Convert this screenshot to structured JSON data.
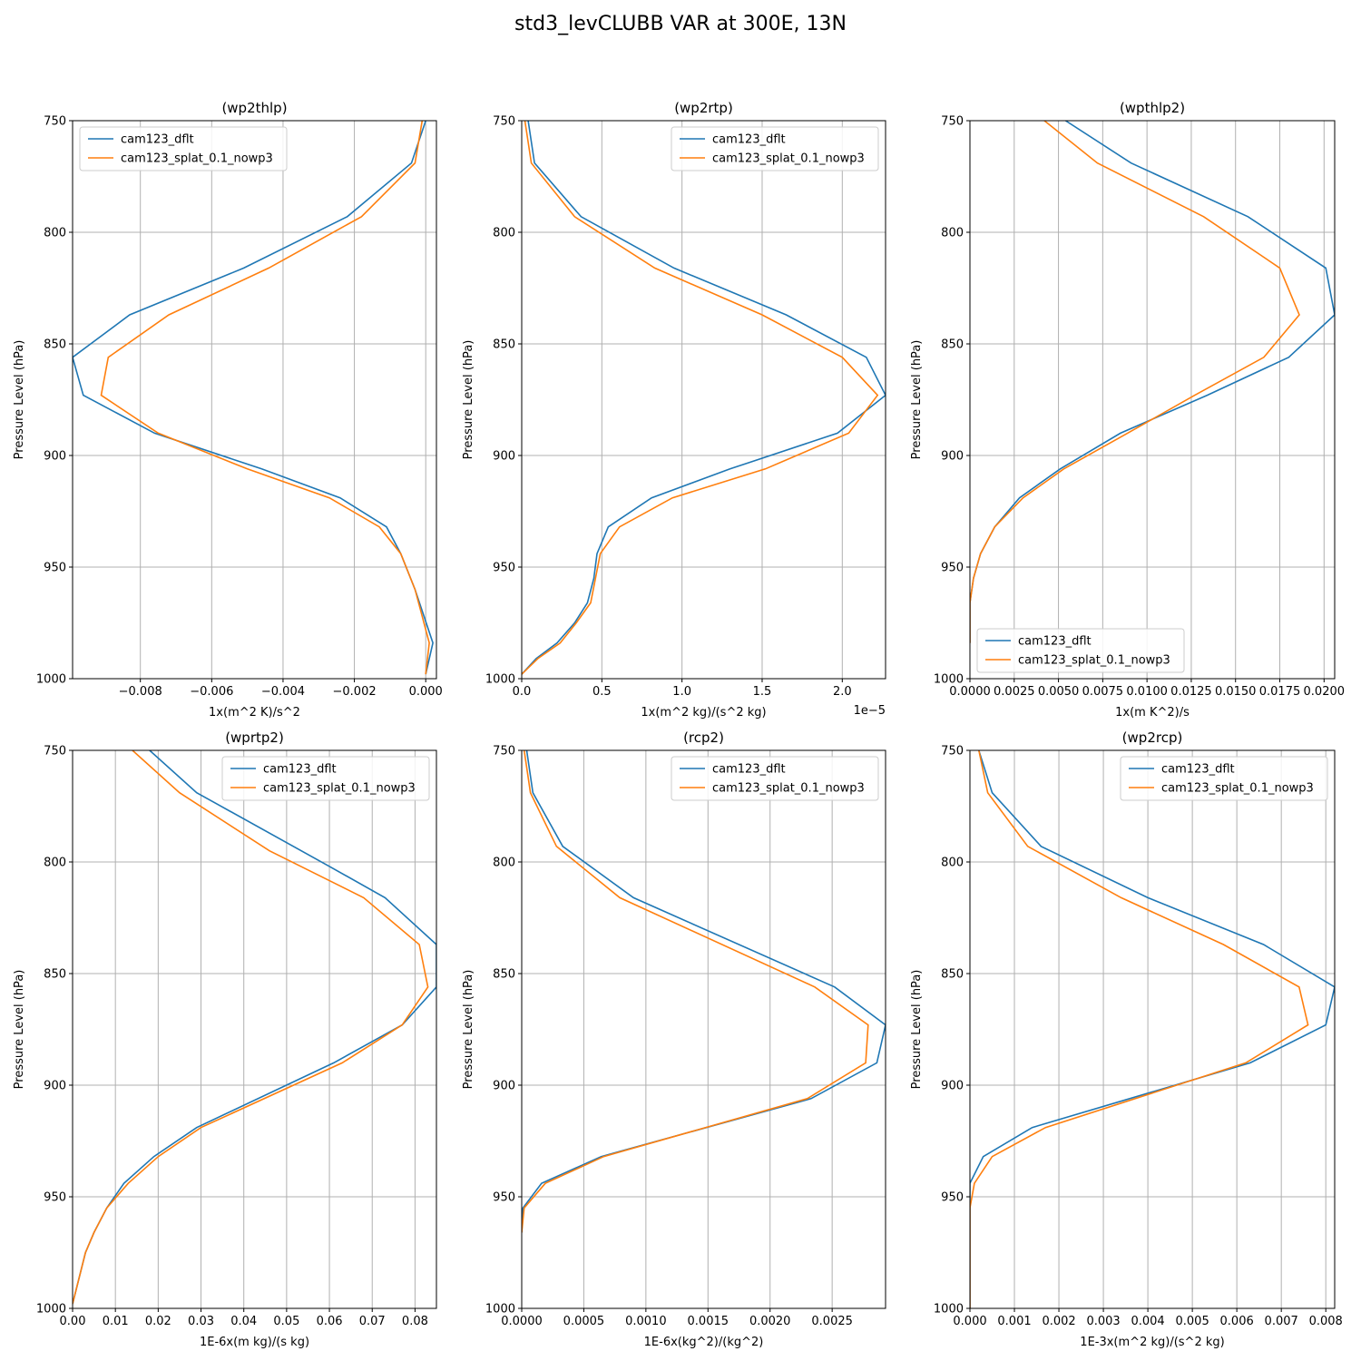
{
  "figure_title": "std3_levCLUBB VAR at 300E, 13N",
  "colors": {
    "dflt": "#1f77b4",
    "splat": "#ff7f0e",
    "grid": "#b0b0b0"
  },
  "chart_data": [
    {
      "type": "line",
      "title": "(wp2thlp)",
      "xlabel": "1x(m^2 K)/s^2",
      "ylabel": "Pressure Level (hPa)",
      "xlim": [
        -0.0099,
        0.0003
      ],
      "ylim": [
        1000,
        750
      ],
      "xticks": [
        -0.008,
        -0.006,
        -0.004,
        -0.002,
        0.0
      ],
      "xtick_labels": [
        "−0.008",
        "−0.006",
        "−0.004",
        "−0.002",
        "0.000"
      ],
      "yticks": [
        750,
        800,
        850,
        900,
        950,
        1000
      ],
      "ytick_labels": [
        "750",
        "800",
        "850",
        "900",
        "950",
        "1000"
      ],
      "offset_label": "",
      "legend": "top-left",
      "grid": true,
      "series": [
        {
          "name": "cam123_dflt",
          "color": "#1f77b4",
          "x": [
            -0.0,
            -0.0004,
            -0.0022,
            -0.0051,
            -0.0083,
            -0.0099,
            -0.0096,
            -0.0076,
            -0.0046,
            -0.0024,
            -0.0011,
            -0.0007,
            -0.0003,
            0.0002,
            0.0
          ],
          "y": [
            750,
            769,
            793,
            816,
            837,
            856,
            873,
            890,
            906,
            919,
            932,
            944,
            960,
            984,
            998
          ]
        },
        {
          "name": "cam123_splat_0.1_nowp3",
          "color": "#ff7f0e",
          "x": [
            -0.0001,
            -0.0003,
            -0.0018,
            -0.0044,
            -0.0072,
            -0.0089,
            -0.0091,
            -0.0075,
            -0.005,
            -0.0027,
            -0.0013,
            -0.0007,
            -0.0003,
            0.0001,
            0.0
          ],
          "y": [
            750,
            769,
            793,
            816,
            837,
            856,
            873,
            890,
            906,
            919,
            932,
            944,
            960,
            984,
            998
          ]
        }
      ]
    },
    {
      "type": "line",
      "title": "(wp2rtp)",
      "xlabel": "1x(m^2 kg)/(s^2 kg)",
      "ylabel": "Pressure Level (hPa)",
      "xlim": [
        0,
        2.27
      ],
      "ylim": [
        1000,
        750
      ],
      "xticks": [
        0,
        0.5,
        1.0,
        1.5,
        2.0
      ],
      "xtick_labels": [
        "0.0",
        "0.5",
        "1.0",
        "1.5",
        "2.0"
      ],
      "yticks": [
        750,
        800,
        850,
        900,
        950,
        1000
      ],
      "ytick_labels": [
        "750",
        "800",
        "850",
        "900",
        "950",
        "1000"
      ],
      "offset_label": "1e−5",
      "legend": "top-right",
      "grid": true,
      "series": [
        {
          "name": "cam123_dflt",
          "color": "#1f77b4",
          "x": [
            0.04,
            0.08,
            0.37,
            0.95,
            1.65,
            2.15,
            2.27,
            1.97,
            1.3,
            0.81,
            0.54,
            0.47,
            0.45,
            0.41,
            0.33,
            0.22,
            0.09,
            0.0
          ],
          "y": [
            750,
            769,
            793,
            816,
            837,
            856,
            873,
            890,
            906,
            919,
            932,
            944,
            955,
            966,
            975,
            984,
            991,
            998
          ]
        },
        {
          "name": "cam123_splat_0.1_nowp3",
          "color": "#ff7f0e",
          "x": [
            0.02,
            0.06,
            0.33,
            0.83,
            1.5,
            2.0,
            2.22,
            2.04,
            1.52,
            0.94,
            0.61,
            0.49,
            0.46,
            0.43,
            0.34,
            0.24,
            0.1,
            0.0
          ],
          "y": [
            750,
            769,
            793,
            816,
            837,
            856,
            873,
            890,
            906,
            919,
            932,
            944,
            955,
            966,
            975,
            984,
            991,
            998
          ]
        }
      ]
    },
    {
      "type": "line",
      "title": "(wpthlp2)",
      "xlabel": "1x(m K^2)/s",
      "ylabel": "Pressure Level (hPa)",
      "xlim": [
        0,
        0.0206
      ],
      "ylim": [
        1000,
        750
      ],
      "xticks": [
        0,
        0.0025,
        0.005,
        0.0075,
        0.01,
        0.0125,
        0.015,
        0.0175,
        0.02
      ],
      "xtick_labels": [
        "0.0000",
        "0.0025",
        "0.0050",
        "0.0075",
        "0.0100",
        "0.0125",
        "0.0150",
        "0.0175",
        "0.0200"
      ],
      "yticks": [
        750,
        800,
        850,
        900,
        950,
        1000
      ],
      "ytick_labels": [
        "750",
        "800",
        "850",
        "900",
        "950",
        "1000"
      ],
      "offset_label": "",
      "legend": "bottom-left",
      "grid": true,
      "series": [
        {
          "name": "cam123_dflt",
          "color": "#1f77b4",
          "x": [
            0.0054,
            0.0091,
            0.0157,
            0.0201,
            0.0206,
            0.018,
            0.0134,
            0.0085,
            0.0051,
            0.0028,
            0.0014,
            0.0006,
            0.0002,
            0.0,
            0.0
          ],
          "y": [
            750,
            769,
            793,
            816,
            837,
            856,
            873,
            890,
            906,
            919,
            932,
            944,
            955,
            966,
            984
          ]
        },
        {
          "name": "cam123_splat_0.1_nowp3",
          "color": "#ff7f0e",
          "x": [
            0.0042,
            0.0072,
            0.0132,
            0.0175,
            0.0186,
            0.0166,
            0.0127,
            0.0089,
            0.0053,
            0.003,
            0.0014,
            0.0006,
            0.0002,
            0.0,
            0.0
          ],
          "y": [
            750,
            769,
            793,
            816,
            837,
            856,
            873,
            890,
            906,
            919,
            932,
            944,
            955,
            966,
            984
          ]
        }
      ]
    },
    {
      "type": "line",
      "title": "(wprtp2)",
      "xlabel": "1E-6x(m kg)/(s kg)",
      "ylabel": "Pressure Level (hPa)",
      "xlim": [
        0,
        0.085
      ],
      "ylim": [
        1000,
        750
      ],
      "xticks": [
        0,
        0.01,
        0.02,
        0.03,
        0.04,
        0.05,
        0.06,
        0.07,
        0.08
      ],
      "xtick_labels": [
        "0.00",
        "0.01",
        "0.02",
        "0.03",
        "0.04",
        "0.05",
        "0.06",
        "0.07",
        "0.08"
      ],
      "yticks": [
        750,
        800,
        850,
        900,
        950,
        1000
      ],
      "ytick_labels": [
        "750",
        "800",
        "850",
        "900",
        "950",
        "1000"
      ],
      "offset_label": "",
      "legend": "top-right",
      "grid": true,
      "series": [
        {
          "name": "cam123_dflt",
          "color": "#1f77b4",
          "x": [
            0.018,
            0.029,
            0.06,
            0.073,
            0.085,
            0.085,
            0.077,
            0.061,
            0.029,
            0.019,
            0.012,
            0.008,
            0.005,
            0.003,
            0.0
          ],
          "y": [
            750,
            769,
            802,
            816,
            837,
            856,
            873,
            890,
            919,
            932,
            944,
            955,
            966,
            975,
            998
          ]
        },
        {
          "name": "cam123_splat_0.1_nowp3",
          "color": "#ff7f0e",
          "x": [
            0.014,
            0.025,
            0.046,
            0.068,
            0.081,
            0.083,
            0.077,
            0.063,
            0.03,
            0.02,
            0.013,
            0.008,
            0.005,
            0.003,
            0.0
          ],
          "y": [
            750,
            769,
            795,
            816,
            837,
            856,
            873,
            890,
            919,
            932,
            944,
            955,
            966,
            975,
            998
          ]
        }
      ]
    },
    {
      "type": "line",
      "title": "(rcp2)",
      "xlabel": "1E-6x(kg^2)/(kg^2)",
      "ylabel": "Pressure Level (hPa)",
      "xlim": [
        0,
        0.00293
      ],
      "ylim": [
        1000,
        750
      ],
      "xticks": [
        0,
        0.0005,
        0.001,
        0.0015,
        0.002,
        0.0025
      ],
      "xtick_labels": [
        "0.0000",
        "0.0005",
        "0.0010",
        "0.0015",
        "0.0020",
        "0.0025"
      ],
      "yticks": [
        750,
        800,
        850,
        900,
        950,
        1000
      ],
      "ytick_labels": [
        "750",
        "800",
        "850",
        "900",
        "950",
        "1000"
      ],
      "offset_label": "",
      "legend": "top-right",
      "grid": true,
      "series": [
        {
          "name": "cam123_dflt",
          "color": "#1f77b4",
          "x": [
            4e-05,
            9e-05,
            0.00033,
            0.0009,
            0.00252,
            0.00293,
            0.00286,
            0.00233,
            0.00064,
            0.00016,
            1e-05,
            0.0
          ],
          "y": [
            750,
            769,
            793,
            816,
            856,
            873,
            890,
            906,
            932,
            944,
            955,
            966
          ]
        },
        {
          "name": "cam123_splat_0.1_nowp3",
          "color": "#ff7f0e",
          "x": [
            2e-05,
            7e-05,
            0.00028,
            0.00079,
            0.00236,
            0.00279,
            0.00277,
            0.0023,
            0.00066,
            0.00019,
            2e-05,
            0.0
          ],
          "y": [
            750,
            769,
            793,
            816,
            856,
            873,
            890,
            906,
            932,
            944,
            955,
            966
          ]
        }
      ]
    },
    {
      "type": "line",
      "title": "(wp2rcp)",
      "xlabel": "1E-3x(m^2 kg)/(s^2 kg)",
      "ylabel": "Pressure Level (hPa)",
      "xlim": [
        0,
        0.0082
      ],
      "ylim": [
        1000,
        750
      ],
      "xticks": [
        0,
        0.001,
        0.002,
        0.003,
        0.004,
        0.005,
        0.006,
        0.007,
        0.008
      ],
      "xtick_labels": [
        "0.000",
        "0.001",
        "0.002",
        "0.003",
        "0.004",
        "0.005",
        "0.006",
        "0.007",
        "0.008"
      ],
      "yticks": [
        750,
        800,
        850,
        900,
        950,
        1000
      ],
      "ytick_labels": [
        "750",
        "800",
        "850",
        "900",
        "950",
        "1000"
      ],
      "offset_label": "",
      "legend": "top-right",
      "grid": true,
      "series": [
        {
          "name": "cam123_dflt",
          "color": "#1f77b4",
          "x": [
            0.0002,
            0.0005,
            0.0016,
            0.004,
            0.0066,
            0.0082,
            0.008,
            0.0063,
            0.0014,
            0.0003,
            0.0,
            0.0,
            0.0
          ],
          "y": [
            750,
            769,
            793,
            816,
            837,
            856,
            873,
            890,
            919,
            932,
            944,
            955,
            1000
          ]
        },
        {
          "name": "cam123_splat_0.1_nowp3",
          "color": "#ff7f0e",
          "x": [
            0.0002,
            0.0004,
            0.0013,
            0.0034,
            0.0057,
            0.0074,
            0.0076,
            0.0062,
            0.0017,
            0.0005,
            0.0001,
            0.0,
            0.0
          ],
          "y": [
            750,
            769,
            793,
            816,
            837,
            856,
            873,
            890,
            919,
            932,
            944,
            955,
            1000
          ]
        }
      ]
    }
  ]
}
